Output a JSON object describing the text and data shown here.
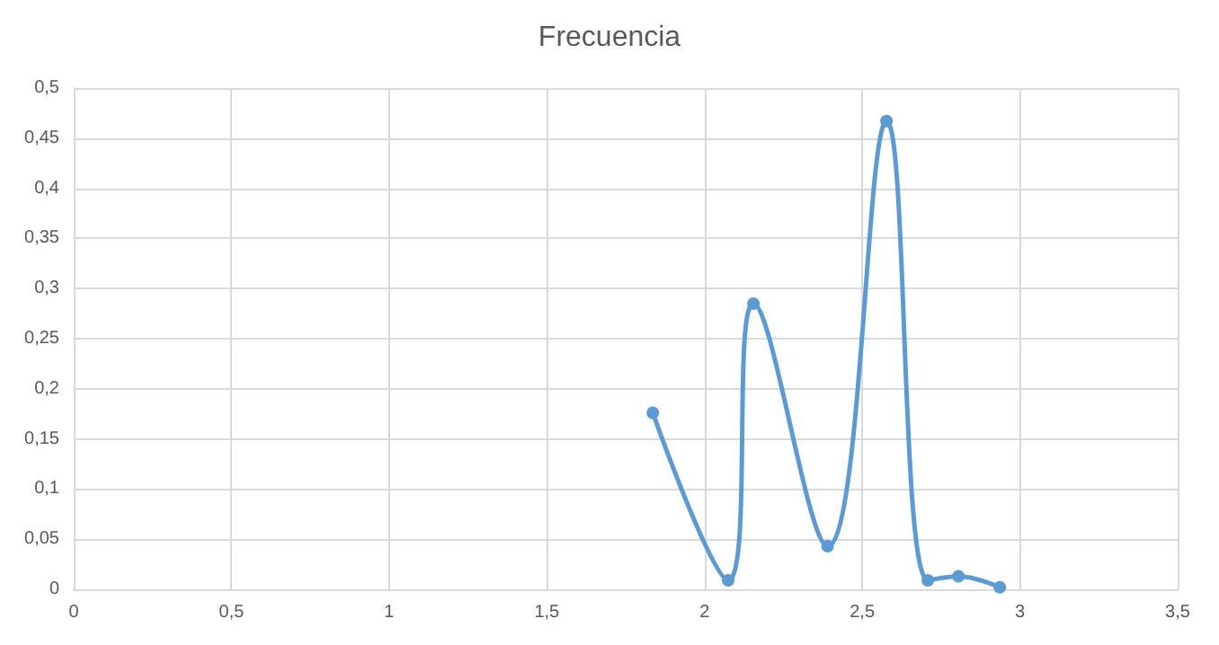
{
  "chart_data": {
    "type": "line",
    "title": "Frecuencia",
    "x": [
      1.836,
      2.075,
      2.155,
      2.39,
      2.577,
      2.708,
      2.805,
      2.936
    ],
    "series": [
      {
        "color": "#5b9bd5",
        "values": [
          0.176,
          0.009,
          0.285,
          0.043,
          0.467,
          0.009,
          0.013,
          0.002
        ]
      }
    ],
    "xlim": [
      0,
      3.5
    ],
    "xticks": [
      0,
      {
        "value": 0.5,
        "label": "0,5"
      },
      1,
      {
        "value": 1.5,
        "label": "1,5"
      },
      2,
      {
        "value": 2.5,
        "label": "2,5"
      },
      3,
      {
        "value": 3.5,
        "label": "3,5"
      }
    ],
    "ylim": [
      0,
      0.5
    ],
    "yticks": [
      0,
      {
        "value": 0.05,
        "label": "0,05"
      },
      {
        "value": 0.1,
        "label": "0,1"
      },
      {
        "value": 0.15,
        "label": "0,15"
      },
      {
        "value": 0.2,
        "label": "0,2"
      },
      {
        "value": 0.25,
        "label": "0,25"
      },
      {
        "value": 0.3,
        "label": "0,3"
      },
      {
        "value": 0.35,
        "label": "0,35"
      },
      {
        "value": 0.4,
        "label": "0,4"
      },
      {
        "value": 0.45,
        "label": "0,45"
      },
      {
        "value": 0.5,
        "label": "0,5"
      }
    ],
    "grid": true,
    "marker": "circle"
  }
}
